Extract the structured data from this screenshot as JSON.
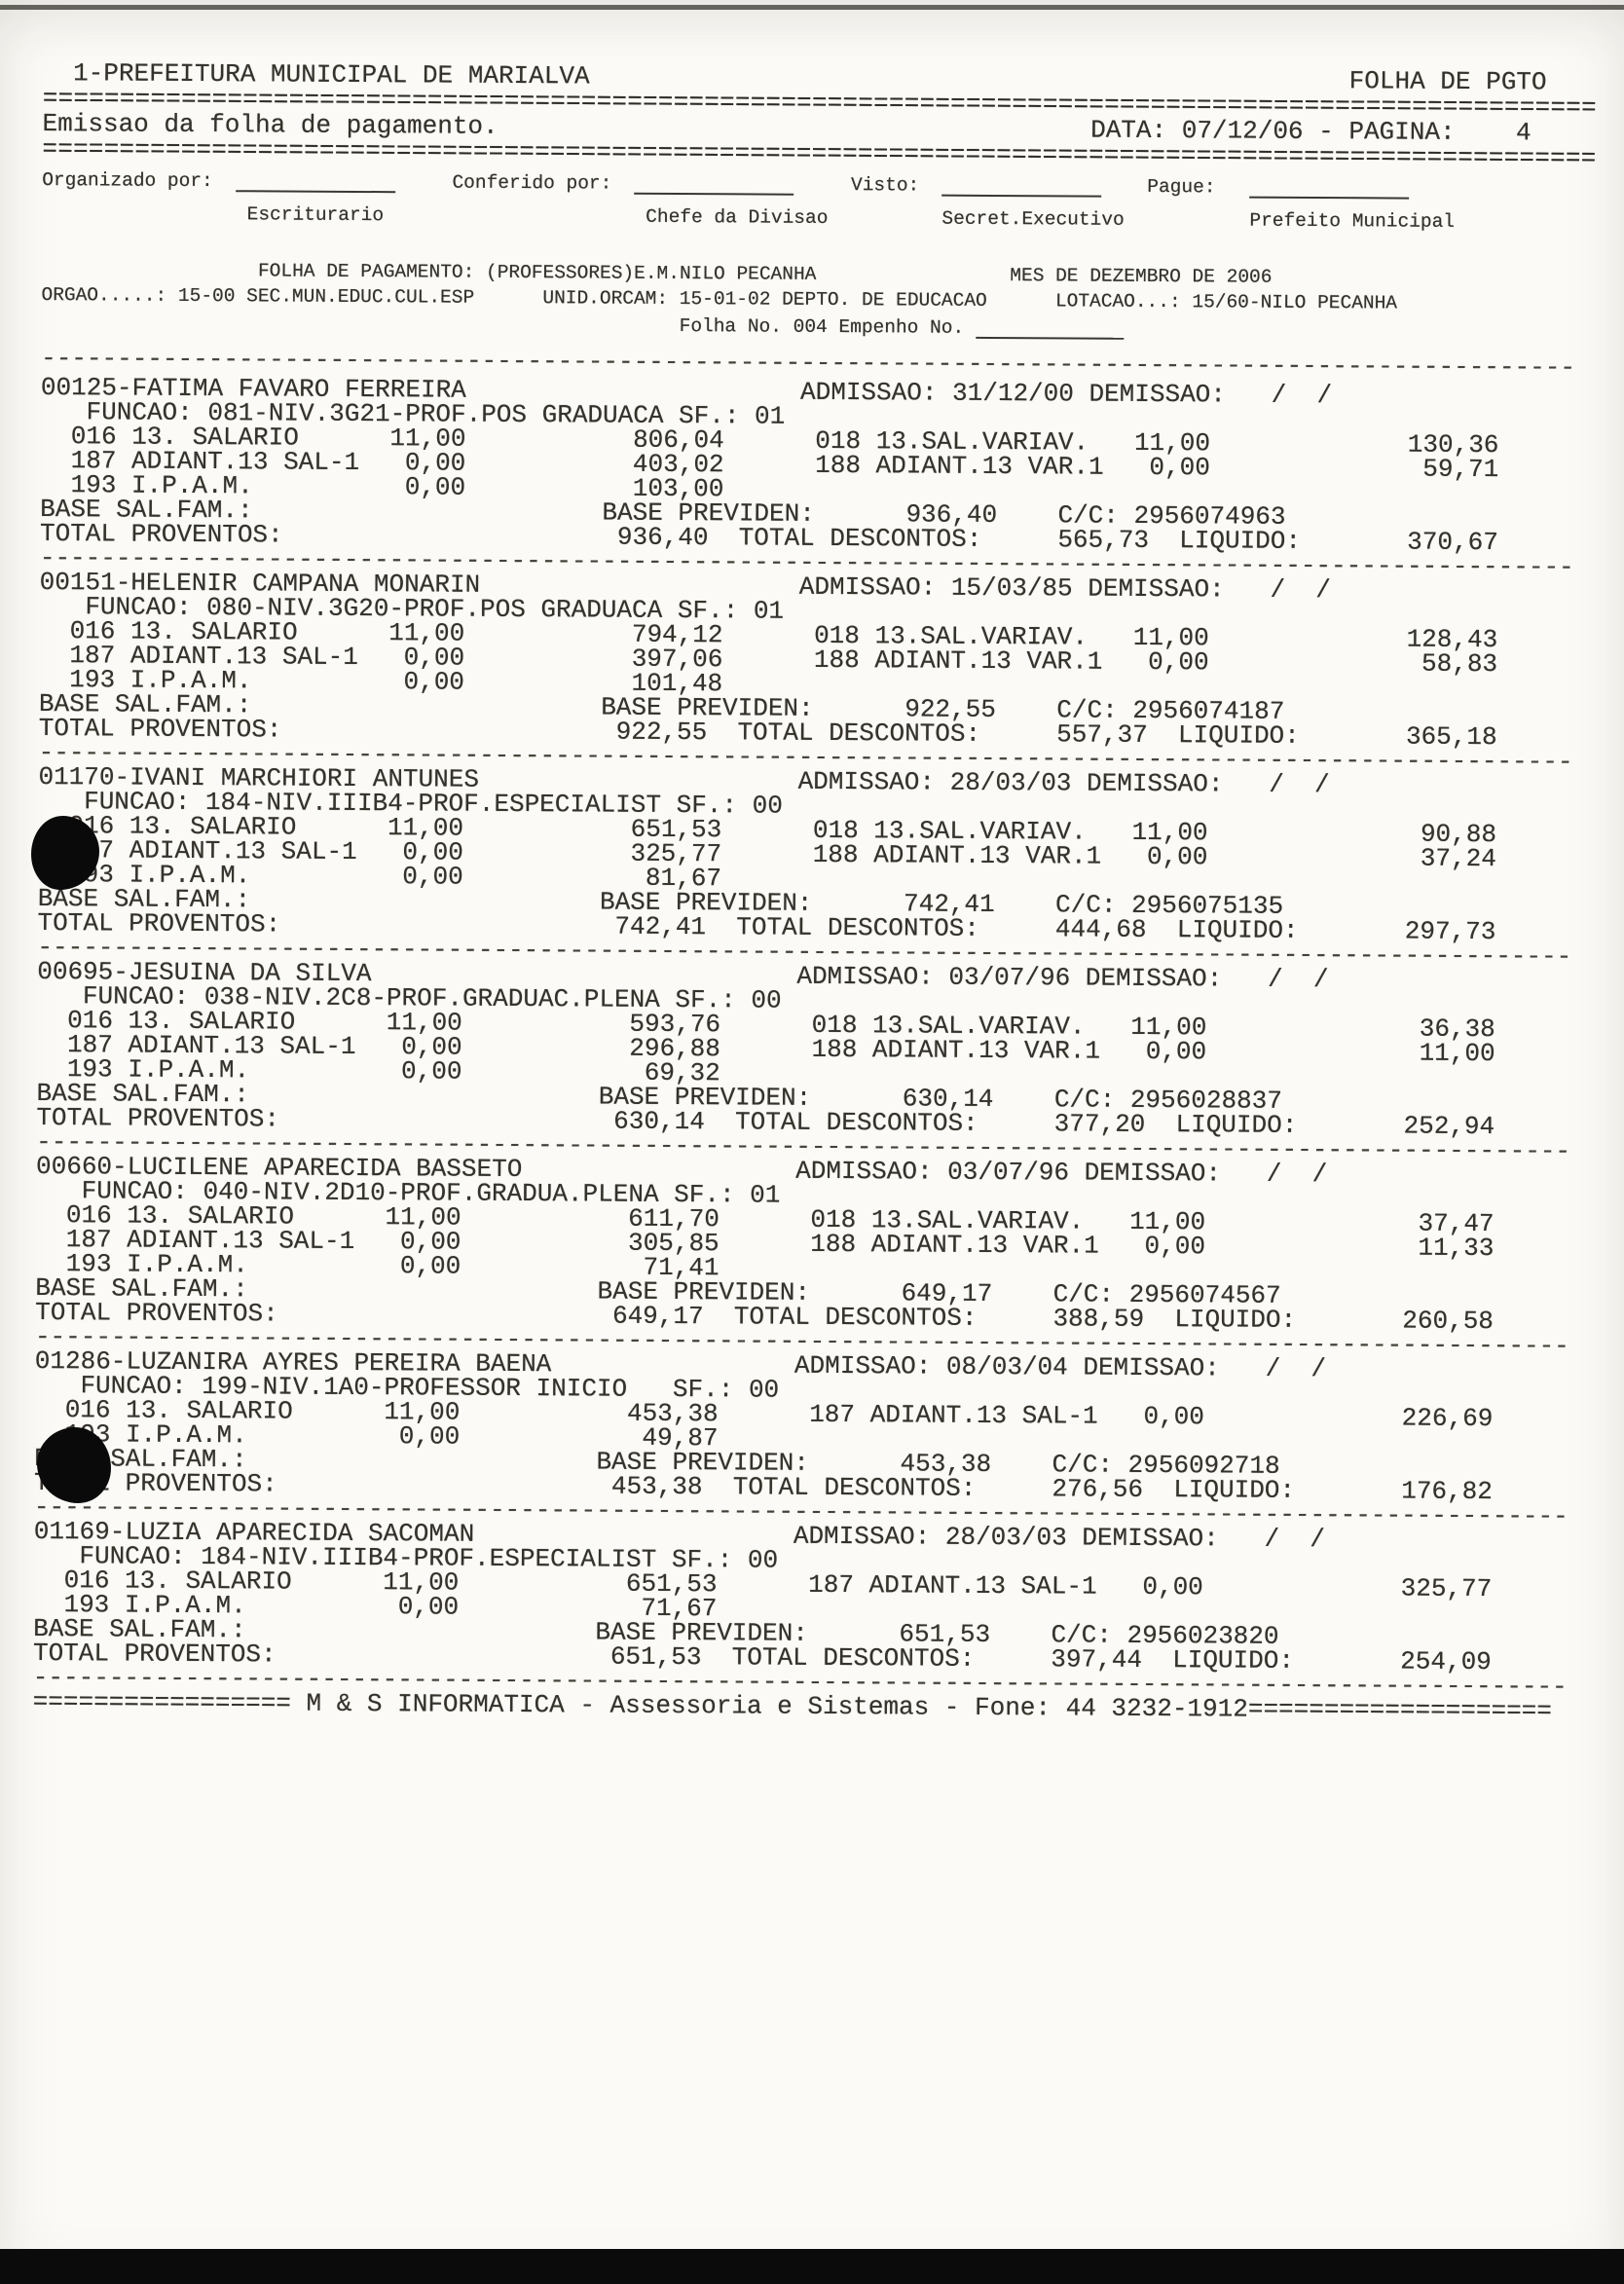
{
  "page": {
    "header_left": "1-PREFEITURA MUNICIPAL DE MARIALVA",
    "header_right": "FOLHA DE PGTO",
    "subheader_left": "Emissao da folha de pagamento.",
    "subheader_right": "DATA: 07/12/06 - PAGINA:    4"
  },
  "signatures": [
    {
      "label": "Organizado por:",
      "role": "Escriturario"
    },
    {
      "label": "Conferido por:",
      "role": "Chefe da Divisao"
    },
    {
      "label": "Visto:",
      "role": "Secret.Executivo"
    },
    {
      "label": "Pague:",
      "role": "Prefeito Municipal"
    }
  ],
  "payroll": {
    "title": "FOLHA DE PAGAMENTO: (PROFESSORES)E.M.NILO PECANHA",
    "month": "MES DE DEZEMBRO DE 2006",
    "orgao_label": "ORGAO.....:",
    "orgao": "15-00 SEC.MUN.EDUC.CUL.ESP",
    "unid_label": "UNID.ORCAM:",
    "unid": "15-01-02 DEPTO. DE EDUCACAO",
    "lotacao_label": "LOTACAO...:",
    "lotacao": "15/60-NILO PECANHA",
    "folha_label": "Folha No.",
    "folha_no": "004",
    "empenho_label": "Empenho No."
  },
  "labels": {
    "admissao": "ADMISSAO:",
    "demissao": "DEMISSAO:",
    "funcao": "FUNCAO:",
    "sf": "SF.:",
    "base_fam": "BASE SAL.FAM.:",
    "base_prev": "BASE PREVIDEN:",
    "cc": "C/C:",
    "tot_prov": "TOTAL PROVENTOS:",
    "tot_desc": "TOTAL DESCONTOS:",
    "liquido": "LIQUIDO:"
  },
  "employees": [
    {
      "id": "00125",
      "name": "FATIMA FAVARO FERREIRA",
      "admissao": "31/12/00",
      "demissao": "  /  /",
      "funcao": "081-NIV.3G21-PROF.POS GRADUACA",
      "sf": "01",
      "earnings": [
        [
          {
            "code": "016",
            "desc": "13. SALARIO",
            "ref": "11,00",
            "value": "806,04"
          },
          {
            "code": "018",
            "desc": "13.SAL.VARIAV.",
            "ref": "11,00",
            "value": "130,36"
          }
        ],
        [
          {
            "code": "187",
            "desc": "ADIANT.13 SAL-1",
            "ref": "0,00",
            "value": "403,02"
          },
          {
            "code": "188",
            "desc": "ADIANT.13 VAR.1",
            "ref": "0,00",
            "value": "59,71"
          }
        ],
        [
          {
            "code": "193",
            "desc": "I.P.A.M.",
            "ref": "0,00",
            "value": "103,00"
          },
          null
        ]
      ],
      "base_previden": "936,40",
      "cc": "2956074963",
      "total_proventos": "936,40",
      "total_descontos": "565,73",
      "liquido": "370,67"
    },
    {
      "id": "00151",
      "name": "HELENIR CAMPANA MONARIN",
      "admissao": "15/03/85",
      "demissao": "  /  /",
      "funcao": "080-NIV.3G20-PROF.POS GRADUACA",
      "sf": "01",
      "earnings": [
        [
          {
            "code": "016",
            "desc": "13. SALARIO",
            "ref": "11,00",
            "value": "794,12"
          },
          {
            "code": "018",
            "desc": "13.SAL.VARIAV.",
            "ref": "11,00",
            "value": "128,43"
          }
        ],
        [
          {
            "code": "187",
            "desc": "ADIANT.13 SAL-1",
            "ref": "0,00",
            "value": "397,06"
          },
          {
            "code": "188",
            "desc": "ADIANT.13 VAR.1",
            "ref": "0,00",
            "value": "58,83"
          }
        ],
        [
          {
            "code": "193",
            "desc": "I.P.A.M.",
            "ref": "0,00",
            "value": "101,48"
          },
          null
        ]
      ],
      "base_previden": "922,55",
      "cc": "2956074187",
      "total_proventos": "922,55",
      "total_descontos": "557,37",
      "liquido": "365,18"
    },
    {
      "id": "01170",
      "name": "IVANI MARCHIORI ANTUNES",
      "admissao": "28/03/03",
      "demissao": "  /  /",
      "funcao": "184-NIV.IIIB4-PROF.ESPECIALIST",
      "sf": "00",
      "earnings": [
        [
          {
            "code": "016",
            "desc": "13. SALARIO",
            "ref": "11,00",
            "value": "651,53"
          },
          {
            "code": "018",
            "desc": "13.SAL.VARIAV.",
            "ref": "11,00",
            "value": "90,88"
          }
        ],
        [
          {
            "code": "187",
            "desc": "ADIANT.13 SAL-1",
            "ref": "0,00",
            "value": "325,77"
          },
          {
            "code": "188",
            "desc": "ADIANT.13 VAR.1",
            "ref": "0,00",
            "value": "37,24"
          }
        ],
        [
          {
            "code": "193",
            "desc": "I.P.A.M.",
            "ref": "0,00",
            "value": "81,67"
          },
          null
        ]
      ],
      "base_previden": "742,41",
      "cc": "2956075135",
      "total_proventos": "742,41",
      "total_descontos": "444,68",
      "liquido": "297,73"
    },
    {
      "id": "00695",
      "name": "JESUINA DA SILVA",
      "admissao": "03/07/96",
      "demissao": "  /  /",
      "funcao": "038-NIV.2C8-PROF.GRADUAC.PLENA",
      "sf": "00",
      "earnings": [
        [
          {
            "code": "016",
            "desc": "13. SALARIO",
            "ref": "11,00",
            "value": "593,76"
          },
          {
            "code": "018",
            "desc": "13.SAL.VARIAV.",
            "ref": "11,00",
            "value": "36,38"
          }
        ],
        [
          {
            "code": "187",
            "desc": "ADIANT.13 SAL-1",
            "ref": "0,00",
            "value": "296,88"
          },
          {
            "code": "188",
            "desc": "ADIANT.13 VAR.1",
            "ref": "0,00",
            "value": "11,00"
          }
        ],
        [
          {
            "code": "193",
            "desc": "I.P.A.M.",
            "ref": "0,00",
            "value": "69,32"
          },
          null
        ]
      ],
      "base_previden": "630,14",
      "cc": "2956028837",
      "total_proventos": "630,14",
      "total_descontos": "377,20",
      "liquido": "252,94"
    },
    {
      "id": "00660",
      "name": "LUCILENE APARECIDA BASSETO",
      "admissao": "03/07/96",
      "demissao": "  /  /",
      "funcao": "040-NIV.2D10-PROF.GRADUA.PLENA",
      "sf": "01",
      "earnings": [
        [
          {
            "code": "016",
            "desc": "13. SALARIO",
            "ref": "11,00",
            "value": "611,70"
          },
          {
            "code": "018",
            "desc": "13.SAL.VARIAV.",
            "ref": "11,00",
            "value": "37,47"
          }
        ],
        [
          {
            "code": "187",
            "desc": "ADIANT.13 SAL-1",
            "ref": "0,00",
            "value": "305,85"
          },
          {
            "code": "188",
            "desc": "ADIANT.13 VAR.1",
            "ref": "0,00",
            "value": "11,33"
          }
        ],
        [
          {
            "code": "193",
            "desc": "I.P.A.M.",
            "ref": "0,00",
            "value": "71,41"
          },
          null
        ]
      ],
      "base_previden": "649,17",
      "cc": "2956074567",
      "total_proventos": "649,17",
      "total_descontos": "388,59",
      "liquido": "260,58"
    },
    {
      "id": "01286",
      "name": "LUZANIRA AYRES PEREIRA BAENA",
      "admissao": "08/03/04",
      "demissao": "  /  /",
      "funcao": "199-NIV.1A0-PROFESSOR INICIO",
      "sf": "00",
      "earnings": [
        [
          {
            "code": "016",
            "desc": "13. SALARIO",
            "ref": "11,00",
            "value": "453,38"
          },
          {
            "code": "187",
            "desc": "ADIANT.13 SAL-1",
            "ref": "0,00",
            "value": "226,69"
          }
        ],
        [
          {
            "code": "193",
            "desc": "I.P.A.M.",
            "ref": "0,00",
            "value": "49,87"
          },
          null
        ]
      ],
      "base_previden": "453,38",
      "cc": "2956092718",
      "total_proventos": "453,38",
      "total_descontos": "276,56",
      "liquido": "176,82"
    },
    {
      "id": "01169",
      "name": "LUZIA APARECIDA SACOMAN",
      "admissao": "28/03/03",
      "demissao": "  /  /",
      "funcao": "184-NIV.IIIB4-PROF.ESPECIALIST",
      "sf": "00",
      "earnings": [
        [
          {
            "code": "016",
            "desc": "13. SALARIO",
            "ref": "11,00",
            "value": "651,53"
          },
          {
            "code": "187",
            "desc": "ADIANT.13 SAL-1",
            "ref": "0,00",
            "value": "325,77"
          }
        ],
        [
          {
            "code": "193",
            "desc": "I.P.A.M.",
            "ref": "0,00",
            "value": "71,67"
          },
          null
        ]
      ],
      "base_previden": "651,53",
      "cc": "2956023820",
      "total_proventos": "651,53",
      "total_descontos": "397,44",
      "liquido": "254,09"
    }
  ],
  "footer": "M & S INFORMATICA - Assessoria e Sistemas - Fone: 44 3232-1912"
}
